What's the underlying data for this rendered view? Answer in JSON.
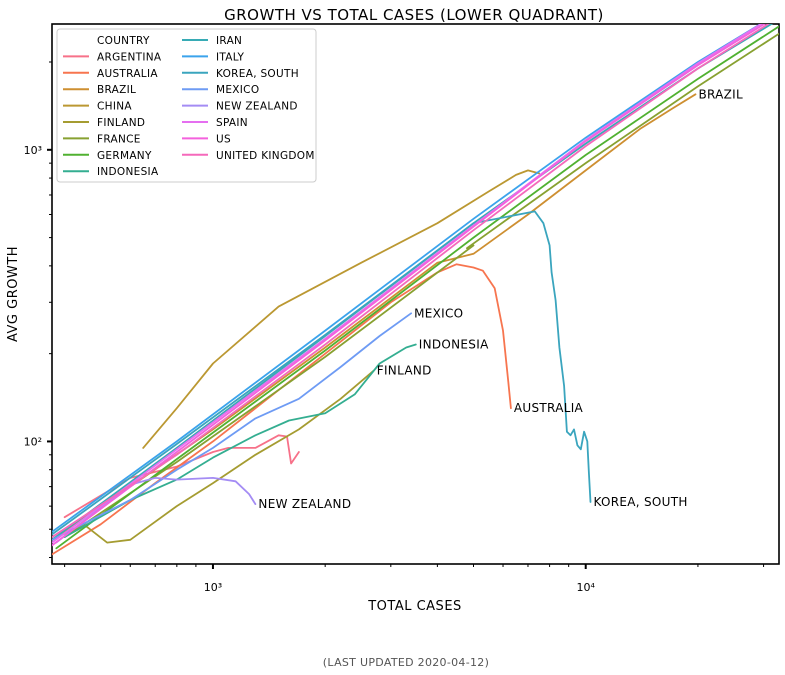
{
  "footer": "(LAST UPDATED 2020-04-12)",
  "chart_data": {
    "type": "line",
    "title": "GROWTH VS TOTAL CASES (LOWER QUADRANT)",
    "xlabel": "TOTAL CASES",
    "ylabel": "AVG GROWTH",
    "xscale": "log",
    "yscale": "log",
    "xlim": [
      370,
      33000
    ],
    "ylim": [
      38,
      2700
    ],
    "xticks": [
      {
        "value": 1000,
        "label": "10³"
      },
      {
        "value": 10000,
        "label": "10⁴"
      }
    ],
    "yticks": [
      {
        "value": 100,
        "label": "10²"
      },
      {
        "value": 1000,
        "label": "10³"
      }
    ],
    "grid": false,
    "legend": {
      "title": "COUNTRY",
      "position": "top-left",
      "columns": 2
    },
    "series": [
      {
        "name": "ARGENTINA",
        "color": "#f77189",
        "label": "",
        "points": [
          [
            400,
            55
          ],
          [
            600,
            75
          ],
          [
            800,
            82
          ],
          [
            1000,
            92
          ],
          [
            1100,
            95
          ],
          [
            1300,
            95
          ],
          [
            1400,
            100
          ],
          [
            1500,
            105
          ],
          [
            1580,
            104
          ],
          [
            1620,
            84
          ],
          [
            1700,
            92
          ]
        ]
      },
      {
        "name": "AUSTRALIA",
        "color": "#f7754f",
        "label": "AUSTRALIA",
        "points": [
          [
            370,
            41
          ],
          [
            500,
            52
          ],
          [
            700,
            72
          ],
          [
            1000,
            100
          ],
          [
            1500,
            150
          ],
          [
            2000,
            200
          ],
          [
            3000,
            300
          ],
          [
            4000,
            380
          ],
          [
            4500,
            405
          ],
          [
            5000,
            395
          ],
          [
            5300,
            385
          ],
          [
            5700,
            335
          ],
          [
            6000,
            240
          ],
          [
            6200,
            160
          ],
          [
            6300,
            130
          ]
        ]
      },
      {
        "name": "BRAZIL",
        "color": "#ce8f31",
        "label": "BRAZIL",
        "points": [
          [
            370,
            46
          ],
          [
            600,
            70
          ],
          [
            1000,
            110
          ],
          [
            2000,
            210
          ],
          [
            4000,
            410
          ],
          [
            5000,
            440
          ],
          [
            7000,
            600
          ],
          [
            10000,
            850
          ],
          [
            14000,
            1180
          ],
          [
            17000,
            1380
          ],
          [
            19700,
            1550
          ]
        ]
      },
      {
        "name": "CHINA",
        "color": "#bb9832",
        "label": "",
        "points": [
          [
            650,
            95
          ],
          [
            800,
            130
          ],
          [
            1000,
            185
          ],
          [
            1500,
            290
          ],
          [
            2500,
            410
          ],
          [
            4000,
            560
          ],
          [
            5500,
            720
          ],
          [
            6500,
            820
          ],
          [
            7000,
            850
          ],
          [
            7500,
            830
          ]
        ]
      },
      {
        "name": "FINLAND",
        "color": "#a59c31",
        "label": "FINLAND",
        "points": [
          [
            370,
            46
          ],
          [
            450,
            52
          ],
          [
            520,
            45
          ],
          [
            600,
            46
          ],
          [
            800,
            60
          ],
          [
            1000,
            72
          ],
          [
            1300,
            90
          ],
          [
            1700,
            110
          ],
          [
            2200,
            140
          ],
          [
            2700,
            175
          ]
        ]
      },
      {
        "name": "FRANCE",
        "color": "#88a131",
        "label": "",
        "points": [
          [
            400,
            47
          ],
          [
            800,
            85
          ],
          [
            2000,
            195
          ],
          [
            5000,
            470
          ],
          [
            4800,
            460
          ],
          [
            10000,
            900
          ],
          [
            20000,
            1650
          ],
          [
            33000,
            2500
          ]
        ]
      },
      {
        "name": "GERMANY",
        "color": "#50b131",
        "label": "",
        "points": [
          [
            380,
            43
          ],
          [
            800,
            87
          ],
          [
            2000,
            205
          ],
          [
            5000,
            500
          ],
          [
            10000,
            960
          ],
          [
            20000,
            1750
          ],
          [
            33000,
            2650
          ]
        ]
      },
      {
        "name": "INDONESIA",
        "color": "#34ae91",
        "label": "INDONESIA",
        "points": [
          [
            400,
            47
          ],
          [
            600,
            63
          ],
          [
            800,
            74
          ],
          [
            1000,
            88
          ],
          [
            1300,
            105
          ],
          [
            1600,
            118
          ],
          [
            2000,
            125
          ],
          [
            2400,
            145
          ],
          [
            2800,
            185
          ],
          [
            3300,
            210
          ],
          [
            3500,
            215
          ]
        ]
      },
      {
        "name": "IRAN",
        "color": "#37abb5",
        "label": "",
        "points": [
          [
            370,
            46
          ],
          [
            800,
            95
          ],
          [
            2000,
            230
          ],
          [
            5000,
            560
          ],
          [
            10000,
            1050
          ],
          [
            20000,
            1900
          ],
          [
            33000,
            2800
          ]
        ]
      },
      {
        "name": "ITALY",
        "color": "#3ba3ec",
        "label": "",
        "points": [
          [
            370,
            49
          ],
          [
            800,
            100
          ],
          [
            2000,
            240
          ],
          [
            5000,
            580
          ],
          [
            10000,
            1100
          ],
          [
            20000,
            2000
          ],
          [
            33000,
            2950
          ]
        ]
      },
      {
        "name": "KOREA, SOUTH",
        "color": "#3aa5be",
        "label": "KOREA, SOUTH",
        "points": [
          [
            370,
            48
          ],
          [
            800,
            98
          ],
          [
            2000,
            232
          ],
          [
            5000,
            560
          ],
          [
            7300,
            615
          ],
          [
            7700,
            560
          ],
          [
            8000,
            470
          ],
          [
            8100,
            380
          ],
          [
            8300,
            305
          ],
          [
            8500,
            210
          ],
          [
            8750,
            155
          ],
          [
            8900,
            108
          ],
          [
            9100,
            105
          ],
          [
            9300,
            110
          ],
          [
            9500,
            97
          ],
          [
            9700,
            94
          ],
          [
            9900,
            108
          ],
          [
            10100,
            100
          ],
          [
            10200,
            78
          ],
          [
            10300,
            62
          ]
        ]
      },
      {
        "name": "MEXICO",
        "color": "#6e9bf4",
        "label": "MEXICO",
        "points": [
          [
            370,
            46
          ],
          [
            600,
            63
          ],
          [
            800,
            80
          ],
          [
            1000,
            95
          ],
          [
            1300,
            120
          ],
          [
            1700,
            140
          ],
          [
            2200,
            180
          ],
          [
            2800,
            230
          ],
          [
            3400,
            275
          ]
        ]
      },
      {
        "name": "NEW ZEALAND",
        "color": "#a48cf4",
        "label": "NEW ZEALAND",
        "points": [
          [
            380,
            45
          ],
          [
            600,
            71
          ],
          [
            700,
            75
          ],
          [
            800,
            74
          ],
          [
            1000,
            75
          ],
          [
            1150,
            73
          ],
          [
            1250,
            66
          ],
          [
            1300,
            61
          ]
        ]
      },
      {
        "name": "SPAIN",
        "color": "#e56ff0",
        "label": "",
        "points": [
          [
            370,
            45
          ],
          [
            800,
            94
          ],
          [
            2000,
            225
          ],
          [
            5000,
            550
          ],
          [
            10000,
            1080
          ],
          [
            20000,
            1980
          ],
          [
            33000,
            2950
          ]
        ]
      },
      {
        "name": "US",
        "color": "#f461dd",
        "label": "",
        "points": [
          [
            370,
            44
          ],
          [
            800,
            92
          ],
          [
            2000,
            222
          ],
          [
            5000,
            545
          ],
          [
            10000,
            1070
          ],
          [
            20000,
            1950
          ],
          [
            33000,
            2900
          ]
        ]
      },
      {
        "name": "UNITED KINGDOM",
        "color": "#f569bb",
        "label": "",
        "points": [
          [
            370,
            47
          ],
          [
            800,
            90
          ],
          [
            2000,
            215
          ],
          [
            5000,
            530
          ],
          [
            10000,
            1030
          ],
          [
            20000,
            1900
          ],
          [
            33000,
            2850
          ]
        ]
      }
    ]
  }
}
